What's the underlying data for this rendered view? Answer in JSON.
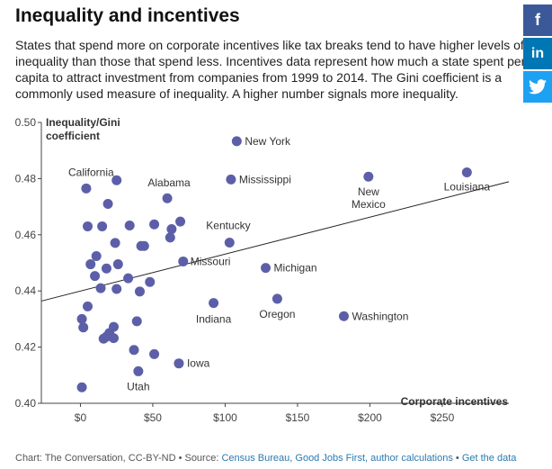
{
  "header": {
    "title": "Inequality and incentives",
    "subtitle": "States that spend more on corporate incentives like tax breaks tend to have higher levels of inequality than those that spend less. Incentives data represent how much a state spent per capita to attract investment from companies from 1999 to 2014. The Gini coefficient is a commonly used measure of inequality. A higher number signals more inequality."
  },
  "share": [
    {
      "icon": "facebook-icon",
      "glyph": "f",
      "color": "#3b5998"
    },
    {
      "icon": "linkedin-icon",
      "glyph": "in",
      "color": "#0077b5"
    },
    {
      "icon": "twitter-icon",
      "glyph": "",
      "color": "#1da1f2"
    }
  ],
  "chart_data": {
    "type": "scatter",
    "ylabel": "Inequality/Gini coefficient",
    "xlabel": "Corporate incentives",
    "xlim": [
      -27,
      296
    ],
    "ylim": [
      0.4,
      0.5
    ],
    "x_ticks": [
      0,
      50,
      100,
      150,
      200,
      250
    ],
    "x_tick_labels": [
      "$0",
      "$50",
      "$100",
      "$150",
      "$200",
      "$250"
    ],
    "y_ticks": [
      0.4,
      0.42,
      0.44,
      0.46,
      0.48,
      0.5
    ],
    "y_tick_labels": [
      "0.40",
      "0.42",
      "0.44",
      "0.46",
      "0.48",
      "0.50"
    ],
    "grid": false,
    "point_color": "#5c5fa8",
    "trend_line": {
      "x": [
        -27,
        296
      ],
      "y": [
        0.4364,
        0.4789
      ]
    },
    "points": [
      {
        "x": 108,
        "y": 0.4933,
        "label": "New York"
      },
      {
        "x": 104,
        "y": 0.4797,
        "label": "Mississippi"
      },
      {
        "x": 199,
        "y": 0.4807,
        "label": "New Mexico"
      },
      {
        "x": 267,
        "y": 0.4822,
        "label": "Louisiana"
      },
      {
        "x": 25,
        "y": 0.4794,
        "label": "California"
      },
      {
        "x": 60,
        "y": 0.473,
        "label": "Alabama"
      },
      {
        "x": 103,
        "y": 0.4572,
        "label": "Kentucky"
      },
      {
        "x": 71,
        "y": 0.4505,
        "label": "Missouri"
      },
      {
        "x": 128,
        "y": 0.4482,
        "label": "Michigan"
      },
      {
        "x": 136,
        "y": 0.4372,
        "label": "Oregon"
      },
      {
        "x": 92,
        "y": 0.4357,
        "label": "Indiana"
      },
      {
        "x": 182,
        "y": 0.431,
        "label": "Washington"
      },
      {
        "x": 68,
        "y": 0.4142,
        "label": "Iowa"
      },
      {
        "x": 40,
        "y": 0.4114,
        "label": "Utah"
      },
      {
        "x": 4,
        "y": 0.4765,
        "label": ""
      },
      {
        "x": 19,
        "y": 0.471,
        "label": ""
      },
      {
        "x": 5,
        "y": 0.463,
        "label": ""
      },
      {
        "x": 15,
        "y": 0.463,
        "label": ""
      },
      {
        "x": 34,
        "y": 0.4633,
        "label": ""
      },
      {
        "x": 51,
        "y": 0.4637,
        "label": ""
      },
      {
        "x": 69,
        "y": 0.4647,
        "label": ""
      },
      {
        "x": 63,
        "y": 0.462,
        "label": ""
      },
      {
        "x": 62,
        "y": 0.459,
        "label": ""
      },
      {
        "x": 24,
        "y": 0.4571,
        "label": ""
      },
      {
        "x": 42,
        "y": 0.456,
        "label": ""
      },
      {
        "x": 44,
        "y": 0.456,
        "label": ""
      },
      {
        "x": 11,
        "y": 0.4524,
        "label": ""
      },
      {
        "x": 7,
        "y": 0.4495,
        "label": ""
      },
      {
        "x": 26,
        "y": 0.4495,
        "label": ""
      },
      {
        "x": 18,
        "y": 0.448,
        "label": ""
      },
      {
        "x": 10,
        "y": 0.4453,
        "label": ""
      },
      {
        "x": 33,
        "y": 0.4445,
        "label": ""
      },
      {
        "x": 48,
        "y": 0.4432,
        "label": ""
      },
      {
        "x": 14,
        "y": 0.441,
        "label": ""
      },
      {
        "x": 25,
        "y": 0.4407,
        "label": ""
      },
      {
        "x": 41,
        "y": 0.4398,
        "label": ""
      },
      {
        "x": 5,
        "y": 0.4345,
        "label": ""
      },
      {
        "x": 1,
        "y": 0.43,
        "label": ""
      },
      {
        "x": 39,
        "y": 0.4292,
        "label": ""
      },
      {
        "x": 2,
        "y": 0.427,
        "label": ""
      },
      {
        "x": 23,
        "y": 0.4272,
        "label": ""
      },
      {
        "x": 20,
        "y": 0.425,
        "label": ""
      },
      {
        "x": 16,
        "y": 0.423,
        "label": ""
      },
      {
        "x": 18,
        "y": 0.4237,
        "label": ""
      },
      {
        "x": 23,
        "y": 0.4232,
        "label": ""
      },
      {
        "x": 37,
        "y": 0.419,
        "label": ""
      },
      {
        "x": 51,
        "y": 0.4175,
        "label": ""
      },
      {
        "x": 1,
        "y": 0.4057,
        "label": ""
      }
    ]
  },
  "footer": {
    "prefix": "Chart: The Conversation, CC-BY-ND • Source: ",
    "sources": "Census Bureau, Good Jobs First, author calculations",
    "sep": " • ",
    "get_data": "Get the data"
  }
}
